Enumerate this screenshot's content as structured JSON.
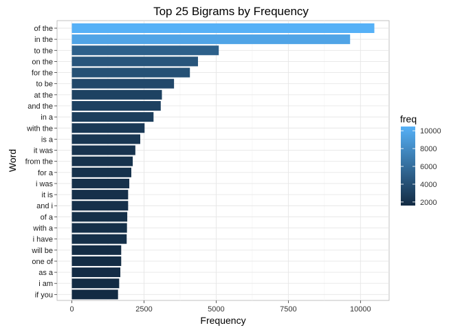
{
  "chart_data": {
    "type": "bar",
    "orientation": "horizontal",
    "title": "Top 25 Bigrams by Frequency",
    "xlabel": "Frequency",
    "ylabel": "Word",
    "xlim": [
      0,
      10800
    ],
    "xticks": [
      0,
      2500,
      5000,
      7500,
      10000
    ],
    "xtick_labels": [
      "0",
      "2500",
      "5000",
      "7500",
      "10000"
    ],
    "grid": true,
    "categories": [
      "of the",
      "in the",
      "to the",
      "on the",
      "for the",
      "to be",
      "at the",
      "and the",
      "in a",
      "with the",
      "is a",
      "it was",
      "from the",
      "for a",
      "i was",
      "it is",
      "and i",
      "of a",
      "with a",
      "i have",
      "will be",
      "one of",
      "as a",
      "i am",
      "if you"
    ],
    "values": [
      10480,
      9640,
      5090,
      4370,
      4090,
      3540,
      3120,
      3080,
      2830,
      2520,
      2370,
      2200,
      2110,
      2060,
      1990,
      1950,
      1950,
      1920,
      1910,
      1900,
      1710,
      1710,
      1680,
      1640,
      1600
    ],
    "legend": {
      "title": "freq",
      "position": "right",
      "min": 1600,
      "max": 10480,
      "ticks": [
        2000,
        4000,
        6000,
        8000,
        10000
      ],
      "tick_labels": [
        "2000",
        "4000",
        "6000",
        "8000",
        "10000"
      ],
      "color_low": "#132b43",
      "color_high": "#56b1f7"
    }
  }
}
